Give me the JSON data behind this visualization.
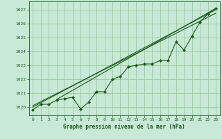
{
  "title": "Graphe pression niveau de la mer (hPa)",
  "bg_color": "#c8e8d8",
  "grid_color": "#99cc99",
  "line_color": "#1a5c1a",
  "xlim": [
    -0.5,
    23.5
  ],
  "ylim": [
    1019.4,
    1027.6
  ],
  "yticks": [
    1020,
    1021,
    1022,
    1023,
    1024,
    1025,
    1026,
    1027
  ],
  "xticks": [
    0,
    1,
    2,
    3,
    4,
    5,
    6,
    7,
    8,
    9,
    10,
    11,
    12,
    13,
    14,
    15,
    16,
    17,
    18,
    19,
    20,
    21,
    22,
    23
  ],
  "data_main": [
    [
      0,
      1019.8
    ],
    [
      1,
      1020.2
    ],
    [
      2,
      1020.2
    ],
    [
      3,
      1020.5
    ],
    [
      4,
      1020.6
    ],
    [
      5,
      1020.7
    ],
    [
      6,
      1019.85
    ],
    [
      7,
      1020.35
    ],
    [
      8,
      1021.1
    ],
    [
      9,
      1021.1
    ],
    [
      10,
      1022.0
    ],
    [
      11,
      1022.2
    ],
    [
      12,
      1022.9
    ],
    [
      13,
      1023.0
    ],
    [
      14,
      1023.1
    ],
    [
      15,
      1023.1
    ],
    [
      16,
      1023.35
    ],
    [
      17,
      1023.35
    ],
    [
      18,
      1024.7
    ],
    [
      19,
      1024.1
    ],
    [
      20,
      1025.1
    ],
    [
      21,
      1026.1
    ],
    [
      22,
      1026.7
    ],
    [
      23,
      1027.1
    ]
  ],
  "trend_lines": [
    [
      [
        0,
        1020.0
      ],
      [
        23,
        1027.0
      ]
    ],
    [
      [
        0,
        1020.1
      ],
      [
        23,
        1026.75
      ]
    ],
    [
      [
        3,
        1020.55
      ],
      [
        23,
        1027.1
      ]
    ]
  ]
}
